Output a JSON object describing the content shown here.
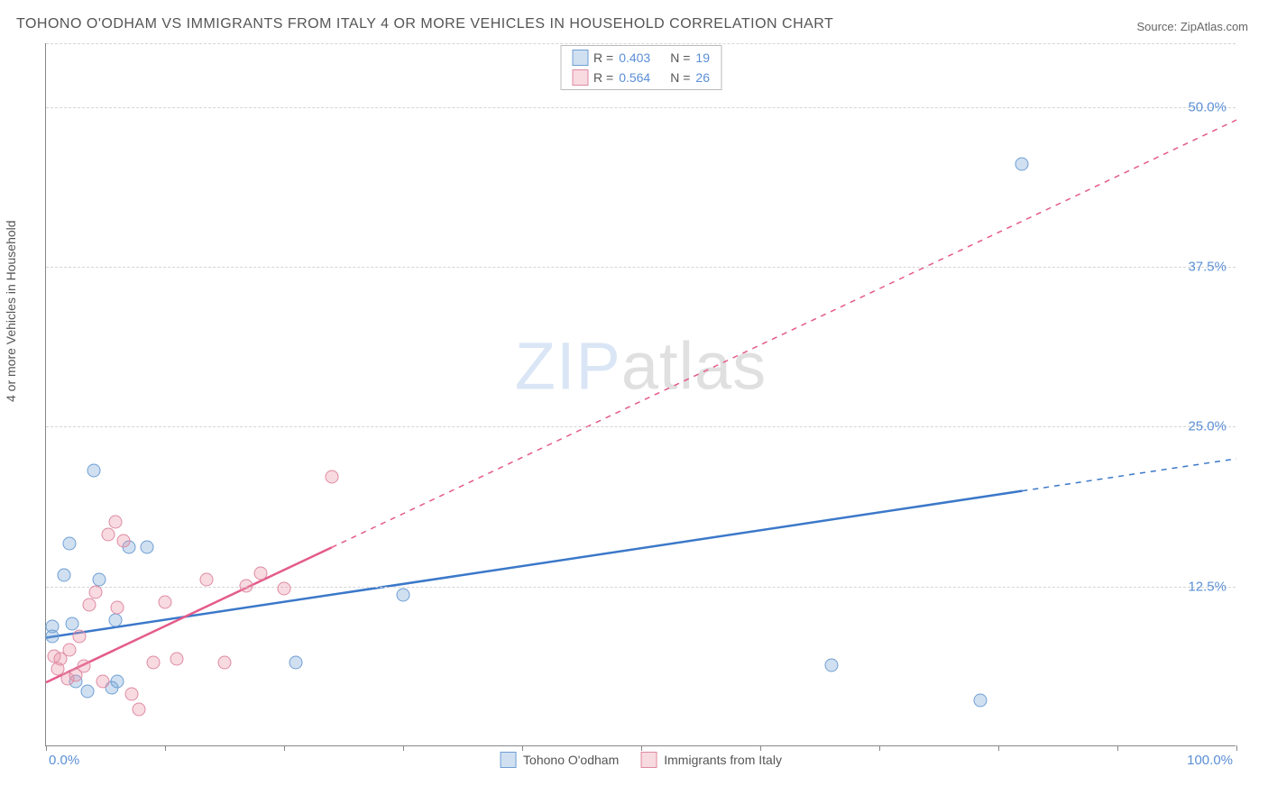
{
  "title": "TOHONO O'ODHAM VS IMMIGRANTS FROM ITALY 4 OR MORE VEHICLES IN HOUSEHOLD CORRELATION CHART",
  "source": "Source: ZipAtlas.com",
  "watermark_a": "ZIP",
  "watermark_b": "atlas",
  "chart": {
    "type": "scatter",
    "xlim": [
      0,
      100
    ],
    "ylim": [
      0,
      55
    ],
    "x_min_label": "0.0%",
    "x_max_label": "100.0%",
    "ylabel": "4 or more Vehicles in Household",
    "y_ticks": [
      {
        "val": 12.5,
        "label": "12.5%"
      },
      {
        "val": 25.0,
        "label": "25.0%"
      },
      {
        "val": 37.5,
        "label": "37.5%"
      },
      {
        "val": 50.0,
        "label": "50.0%"
      }
    ],
    "x_tick_positions": [
      0,
      10,
      20,
      30,
      40,
      50,
      60,
      70,
      80,
      90,
      100
    ],
    "grid_dash_rows": [
      12.5,
      25.0,
      37.5,
      50.0,
      55.0
    ],
    "background_color": "#ffffff",
    "grid_color": "#d5d5d5",
    "axis_color": "#888888",
    "point_radius": 7.5,
    "series": [
      {
        "name": "Tohono O'odham",
        "fill": "rgba(120,165,216,0.35)",
        "stroke": "#6f9ed4",
        "line_color": "#3b78c9",
        "line_width": 2.5,
        "r": "0.403",
        "n": "19",
        "reg": {
          "x1": 0,
          "y1": 8.5,
          "x2": 100,
          "y2": 22.5,
          "solid_to_x": 82
        },
        "points": [
          {
            "x": 0.5,
            "y": 9.3
          },
          {
            "x": 0.5,
            "y": 8.5
          },
          {
            "x": 1.5,
            "y": 13.3
          },
          {
            "x": 2.0,
            "y": 15.8
          },
          {
            "x": 2.2,
            "y": 9.5
          },
          {
            "x": 2.5,
            "y": 5.0
          },
          {
            "x": 3.5,
            "y": 4.2
          },
          {
            "x": 4.0,
            "y": 21.5
          },
          {
            "x": 4.5,
            "y": 13.0
          },
          {
            "x": 5.5,
            "y": 4.5
          },
          {
            "x": 5.8,
            "y": 9.8
          },
          {
            "x": 6.0,
            "y": 5.0
          },
          {
            "x": 7.0,
            "y": 15.5
          },
          {
            "x": 8.5,
            "y": 15.5
          },
          {
            "x": 21.0,
            "y": 6.5
          },
          {
            "x": 30.0,
            "y": 11.8
          },
          {
            "x": 66.0,
            "y": 6.3
          },
          {
            "x": 78.5,
            "y": 3.5
          },
          {
            "x": 82.0,
            "y": 45.5
          }
        ]
      },
      {
        "name": "Immigrants from Italy",
        "fill": "rgba(235,150,170,0.35)",
        "stroke": "#df8aa2",
        "line_color": "#e45b8a",
        "line_width": 2.5,
        "r": "0.564",
        "n": "26",
        "reg": {
          "x1": 0,
          "y1": 5.0,
          "x2": 100,
          "y2": 49.0,
          "solid_to_x": 24
        },
        "points": [
          {
            "x": 0.7,
            "y": 7.0
          },
          {
            "x": 1.0,
            "y": 6.0
          },
          {
            "x": 1.2,
            "y": 6.8
          },
          {
            "x": 1.8,
            "y": 5.2
          },
          {
            "x": 2.0,
            "y": 7.5
          },
          {
            "x": 2.5,
            "y": 5.5
          },
          {
            "x": 2.8,
            "y": 8.5
          },
          {
            "x": 3.2,
            "y": 6.2
          },
          {
            "x": 3.6,
            "y": 11.0
          },
          {
            "x": 4.2,
            "y": 12.0
          },
          {
            "x": 4.8,
            "y": 5.0
          },
          {
            "x": 5.2,
            "y": 16.5
          },
          {
            "x": 5.8,
            "y": 17.5
          },
          {
            "x": 6.0,
            "y": 10.8
          },
          {
            "x": 6.5,
            "y": 16.0
          },
          {
            "x": 7.2,
            "y": 4.0
          },
          {
            "x": 7.8,
            "y": 2.8
          },
          {
            "x": 9.0,
            "y": 6.5
          },
          {
            "x": 10.0,
            "y": 11.2
          },
          {
            "x": 11.0,
            "y": 6.8
          },
          {
            "x": 13.5,
            "y": 13.0
          },
          {
            "x": 15.0,
            "y": 6.5
          },
          {
            "x": 16.8,
            "y": 12.5
          },
          {
            "x": 18.0,
            "y": 13.5
          },
          {
            "x": 20.0,
            "y": 12.3
          },
          {
            "x": 24.0,
            "y": 21.0
          }
        ]
      }
    ],
    "legend_top_label_r": "R =",
    "legend_top_label_n": "N ="
  }
}
